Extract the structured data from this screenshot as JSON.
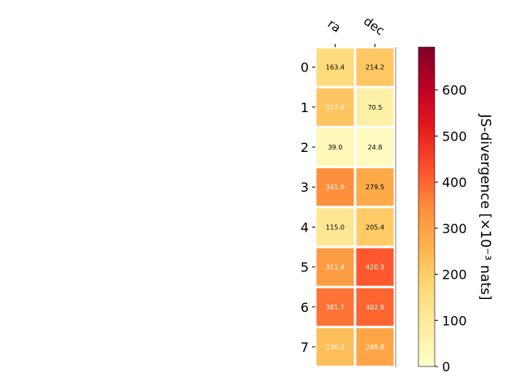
{
  "chart_data": {
    "type": "heatmap",
    "columns": [
      "ra",
      "dec"
    ],
    "rows": [
      "0",
      "1",
      "2",
      "3",
      "4",
      "5",
      "6",
      "7"
    ],
    "values": [
      [
        163.4,
        214.2
      ],
      [
        217.6,
        70.5
      ],
      [
        39.0,
        24.8
      ],
      [
        341.9,
        279.5
      ],
      [
        115.0,
        205.4
      ],
      [
        311.4,
        420.3
      ],
      [
        381.7,
        402.9
      ],
      [
        230.5,
        288.8
      ]
    ],
    "cell_labels": [
      [
        "163.4",
        "214.2"
      ],
      [
        "217.6",
        "70.5"
      ],
      [
        "39.0",
        "24.8"
      ],
      [
        "341.9",
        "279.5"
      ],
      [
        "115.0",
        "205.4"
      ],
      [
        "311.4",
        "420.3"
      ],
      [
        "381.7",
        "402.9"
      ],
      [
        "230.5",
        "288.8"
      ]
    ],
    "colorbar": {
      "label": "JS-divergence [×10⁻³ nats]",
      "range": [
        0,
        693
      ],
      "ticks": [
        0,
        100,
        200,
        300,
        400,
        500,
        600
      ],
      "tick_labels": [
        "0",
        "100",
        "200",
        "300",
        "400",
        "500",
        "600"
      ],
      "colormap": [
        "#ffffcc",
        "#ffeda0",
        "#fed976",
        "#feb24c",
        "#fd8d3c",
        "#fc4e2a",
        "#e31a1c",
        "#bd0026",
        "#800026"
      ]
    },
    "grid": false
  }
}
